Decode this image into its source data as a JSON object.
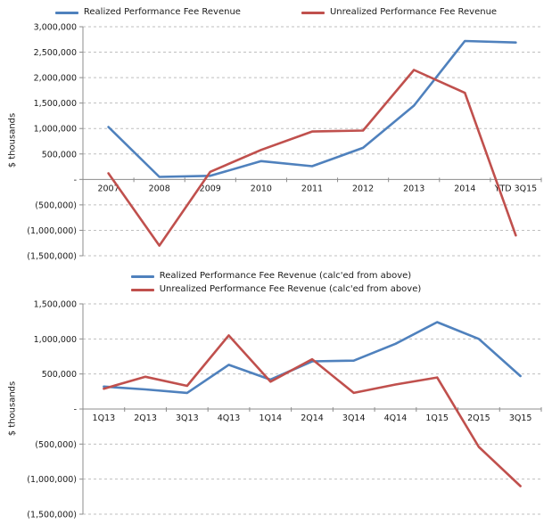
{
  "colors": {
    "realized": "#4F81BD",
    "unrealized": "#C0504D",
    "gridline": "#BFBFBF",
    "axis": "#8C8C8C",
    "text": "#1A1A1A",
    "background": "#FFFFFF"
  },
  "chart_data": [
    {
      "type": "line",
      "title": "",
      "ylabel": "$ thousands",
      "xlabel": "",
      "legend_position": "top",
      "grid": "horizontal-dashed",
      "categories": [
        "2007",
        "2008",
        "2009",
        "2010",
        "2011",
        "2012",
        "2013",
        "2014",
        "YTD 3Q15"
      ],
      "series": [
        {
          "name": "Realized Performance Fee Revenue",
          "color_key": "realized",
          "values": [
            1030000,
            50000,
            70000,
            360000,
            260000,
            620000,
            1450000,
            2720000,
            2690000
          ]
        },
        {
          "name": "Unrealized Performance Fee Revenue",
          "color_key": "unrealized",
          "values": [
            120000,
            -1300000,
            150000,
            580000,
            940000,
            960000,
            2150000,
            1700000,
            -1100000
          ]
        }
      ],
      "ylim": [
        -1500000,
        3000000
      ],
      "yticks": [
        {
          "value": 3000000,
          "label": "3,000,000"
        },
        {
          "value": 2500000,
          "label": "2,500,000"
        },
        {
          "value": 2000000,
          "label": "2,000,000"
        },
        {
          "value": 1500000,
          "label": "1,500,000"
        },
        {
          "value": 1000000,
          "label": "1,000,000"
        },
        {
          "value": 500000,
          "label": "500,000"
        },
        {
          "value": 0,
          "label": "-"
        },
        {
          "value": -500000,
          "label": "(500,000)"
        },
        {
          "value": -1000000,
          "label": "(1,000,000)"
        },
        {
          "value": -1500000,
          "label": "(1,500,000)"
        }
      ]
    },
    {
      "type": "line",
      "title": "",
      "ylabel": "$ thousands",
      "xlabel": "",
      "legend_position": "top-stacked",
      "grid": "horizontal-dashed",
      "categories": [
        "1Q13",
        "2Q13",
        "3Q13",
        "4Q13",
        "1Q14",
        "2Q14",
        "3Q14",
        "4Q14",
        "1Q15",
        "2Q15",
        "3Q15"
      ],
      "series": [
        {
          "name": "Realized Performance Fee Revenue (calc'ed from above)",
          "color_key": "realized",
          "values": [
            320000,
            280000,
            230000,
            630000,
            420000,
            680000,
            690000,
            930000,
            1240000,
            1000000,
            470000
          ]
        },
        {
          "name": "Unrealized Performance Fee Revenue (calc'ed from above)",
          "color_key": "unrealized",
          "values": [
            290000,
            460000,
            330000,
            1050000,
            390000,
            710000,
            230000,
            350000,
            450000,
            -540000,
            -1100000
          ]
        }
      ],
      "ylim": [
        -1500000,
        1500000
      ],
      "yticks": [
        {
          "value": 1500000,
          "label": "1,500,000"
        },
        {
          "value": 1000000,
          "label": "1,000,000"
        },
        {
          "value": 500000,
          "label": "500,000"
        },
        {
          "value": 0,
          "label": "-"
        },
        {
          "value": -500000,
          "label": "(500,000)"
        },
        {
          "value": -1000000,
          "label": "(1,000,000)"
        },
        {
          "value": -1500000,
          "label": "(1,500,000)"
        }
      ]
    }
  ]
}
